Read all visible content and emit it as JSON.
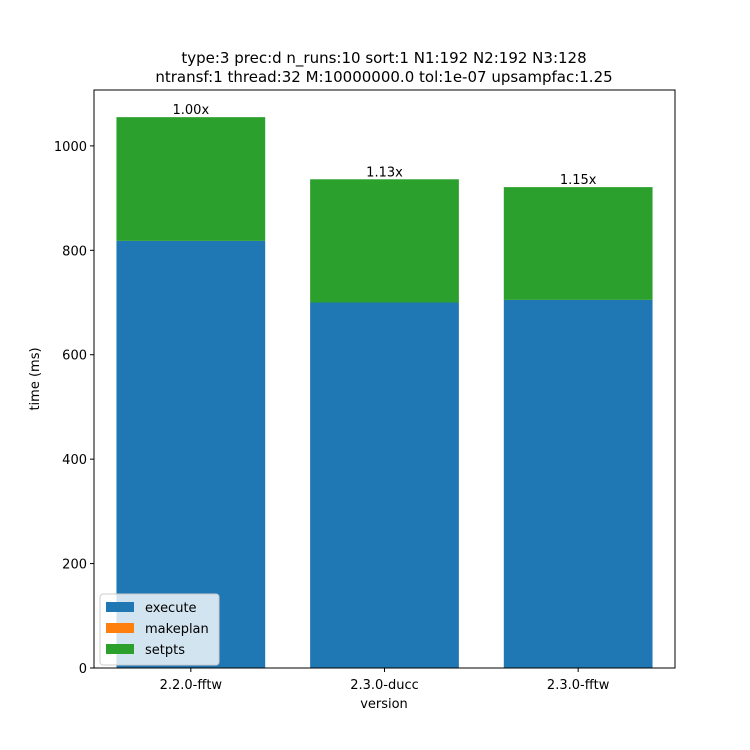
{
  "chart_data": {
    "type": "bar",
    "stacked": true,
    "title_lines": [
      "type:3 prec:d n_runs:10 sort:1 N1:192 N2:192 N3:128",
      "ntransf:1 thread:32 M:10000000.0 tol:1e-07 upsampfac:1.25"
    ],
    "xlabel": "version",
    "ylabel": "time (ms)",
    "categories": [
      "2.2.0-fftw",
      "2.3.0-ducc",
      "2.3.0-fftw"
    ],
    "series": [
      {
        "name": "execute",
        "color": "#1f77b4",
        "values": [
          818,
          700,
          705
        ]
      },
      {
        "name": "makeplan",
        "color": "#ff7f0e",
        "values": [
          0,
          0,
          0
        ]
      },
      {
        "name": "setpts",
        "color": "#2ca02c",
        "values": [
          237,
          236,
          216
        ]
      }
    ],
    "bar_labels": [
      "1.00x",
      "1.13x",
      "1.15x"
    ],
    "ylim": [
      0,
      1107
    ],
    "yticks": [
      0,
      200,
      400,
      600,
      800,
      1000
    ],
    "grid": false,
    "legend_position": "lower-left"
  }
}
